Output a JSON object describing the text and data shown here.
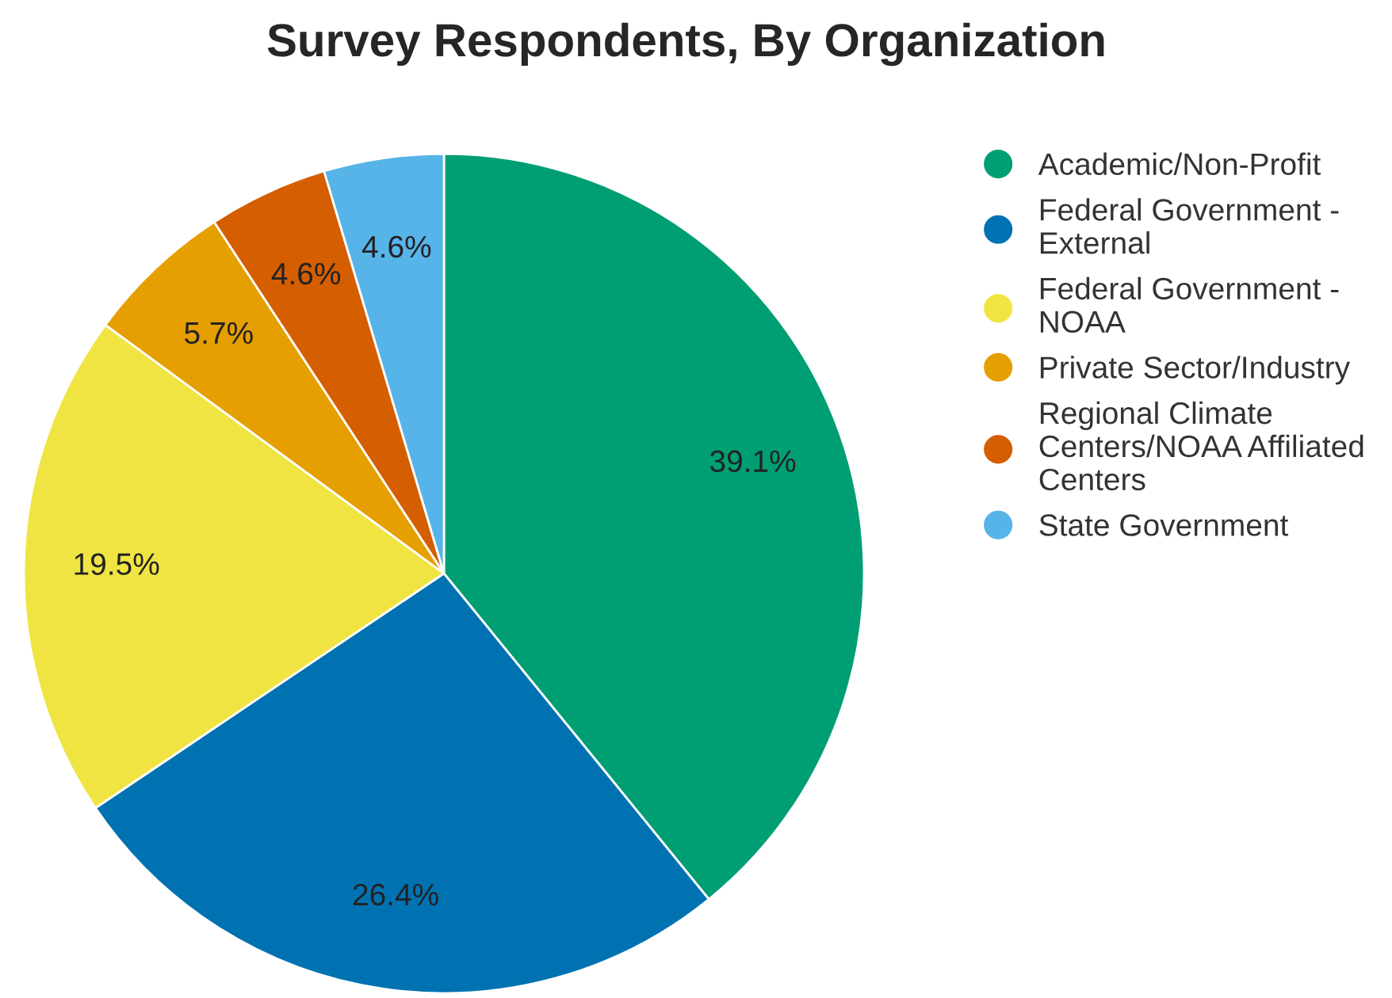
{
  "chart_data": {
    "type": "pie",
    "title": "Survey Respondents, By Organization",
    "categories": [
      "Academic/Non-Profit",
      "Federal Government - External",
      "Federal Government - NOAA",
      "Private Sector/Industry",
      "Regional Climate Centers/NOAA Affiliated Centers",
      "State Government"
    ],
    "values": [
      39.1,
      26.4,
      19.5,
      5.7,
      4.6,
      4.6
    ],
    "value_labels": [
      "39.1%",
      "26.4%",
      "19.5%",
      "5.7%",
      "4.6%",
      "4.6%"
    ],
    "colors": [
      "#009e73",
      "#0072b2",
      "#f0e442",
      "#e69f00",
      "#d55e00",
      "#56b4e9"
    ],
    "legend": "right"
  }
}
